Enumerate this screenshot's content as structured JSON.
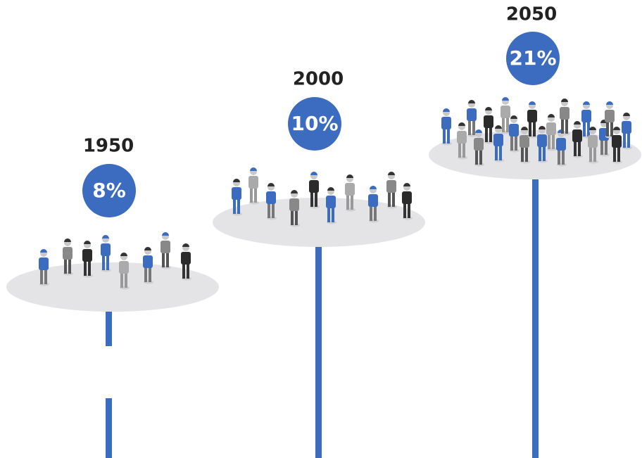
{
  "stages": [
    {
      "year": "1950",
      "share": "8%"
    },
    {
      "year": "2000",
      "share": "10%"
    },
    {
      "year": "2050",
      "share": "21%"
    }
  ]
}
